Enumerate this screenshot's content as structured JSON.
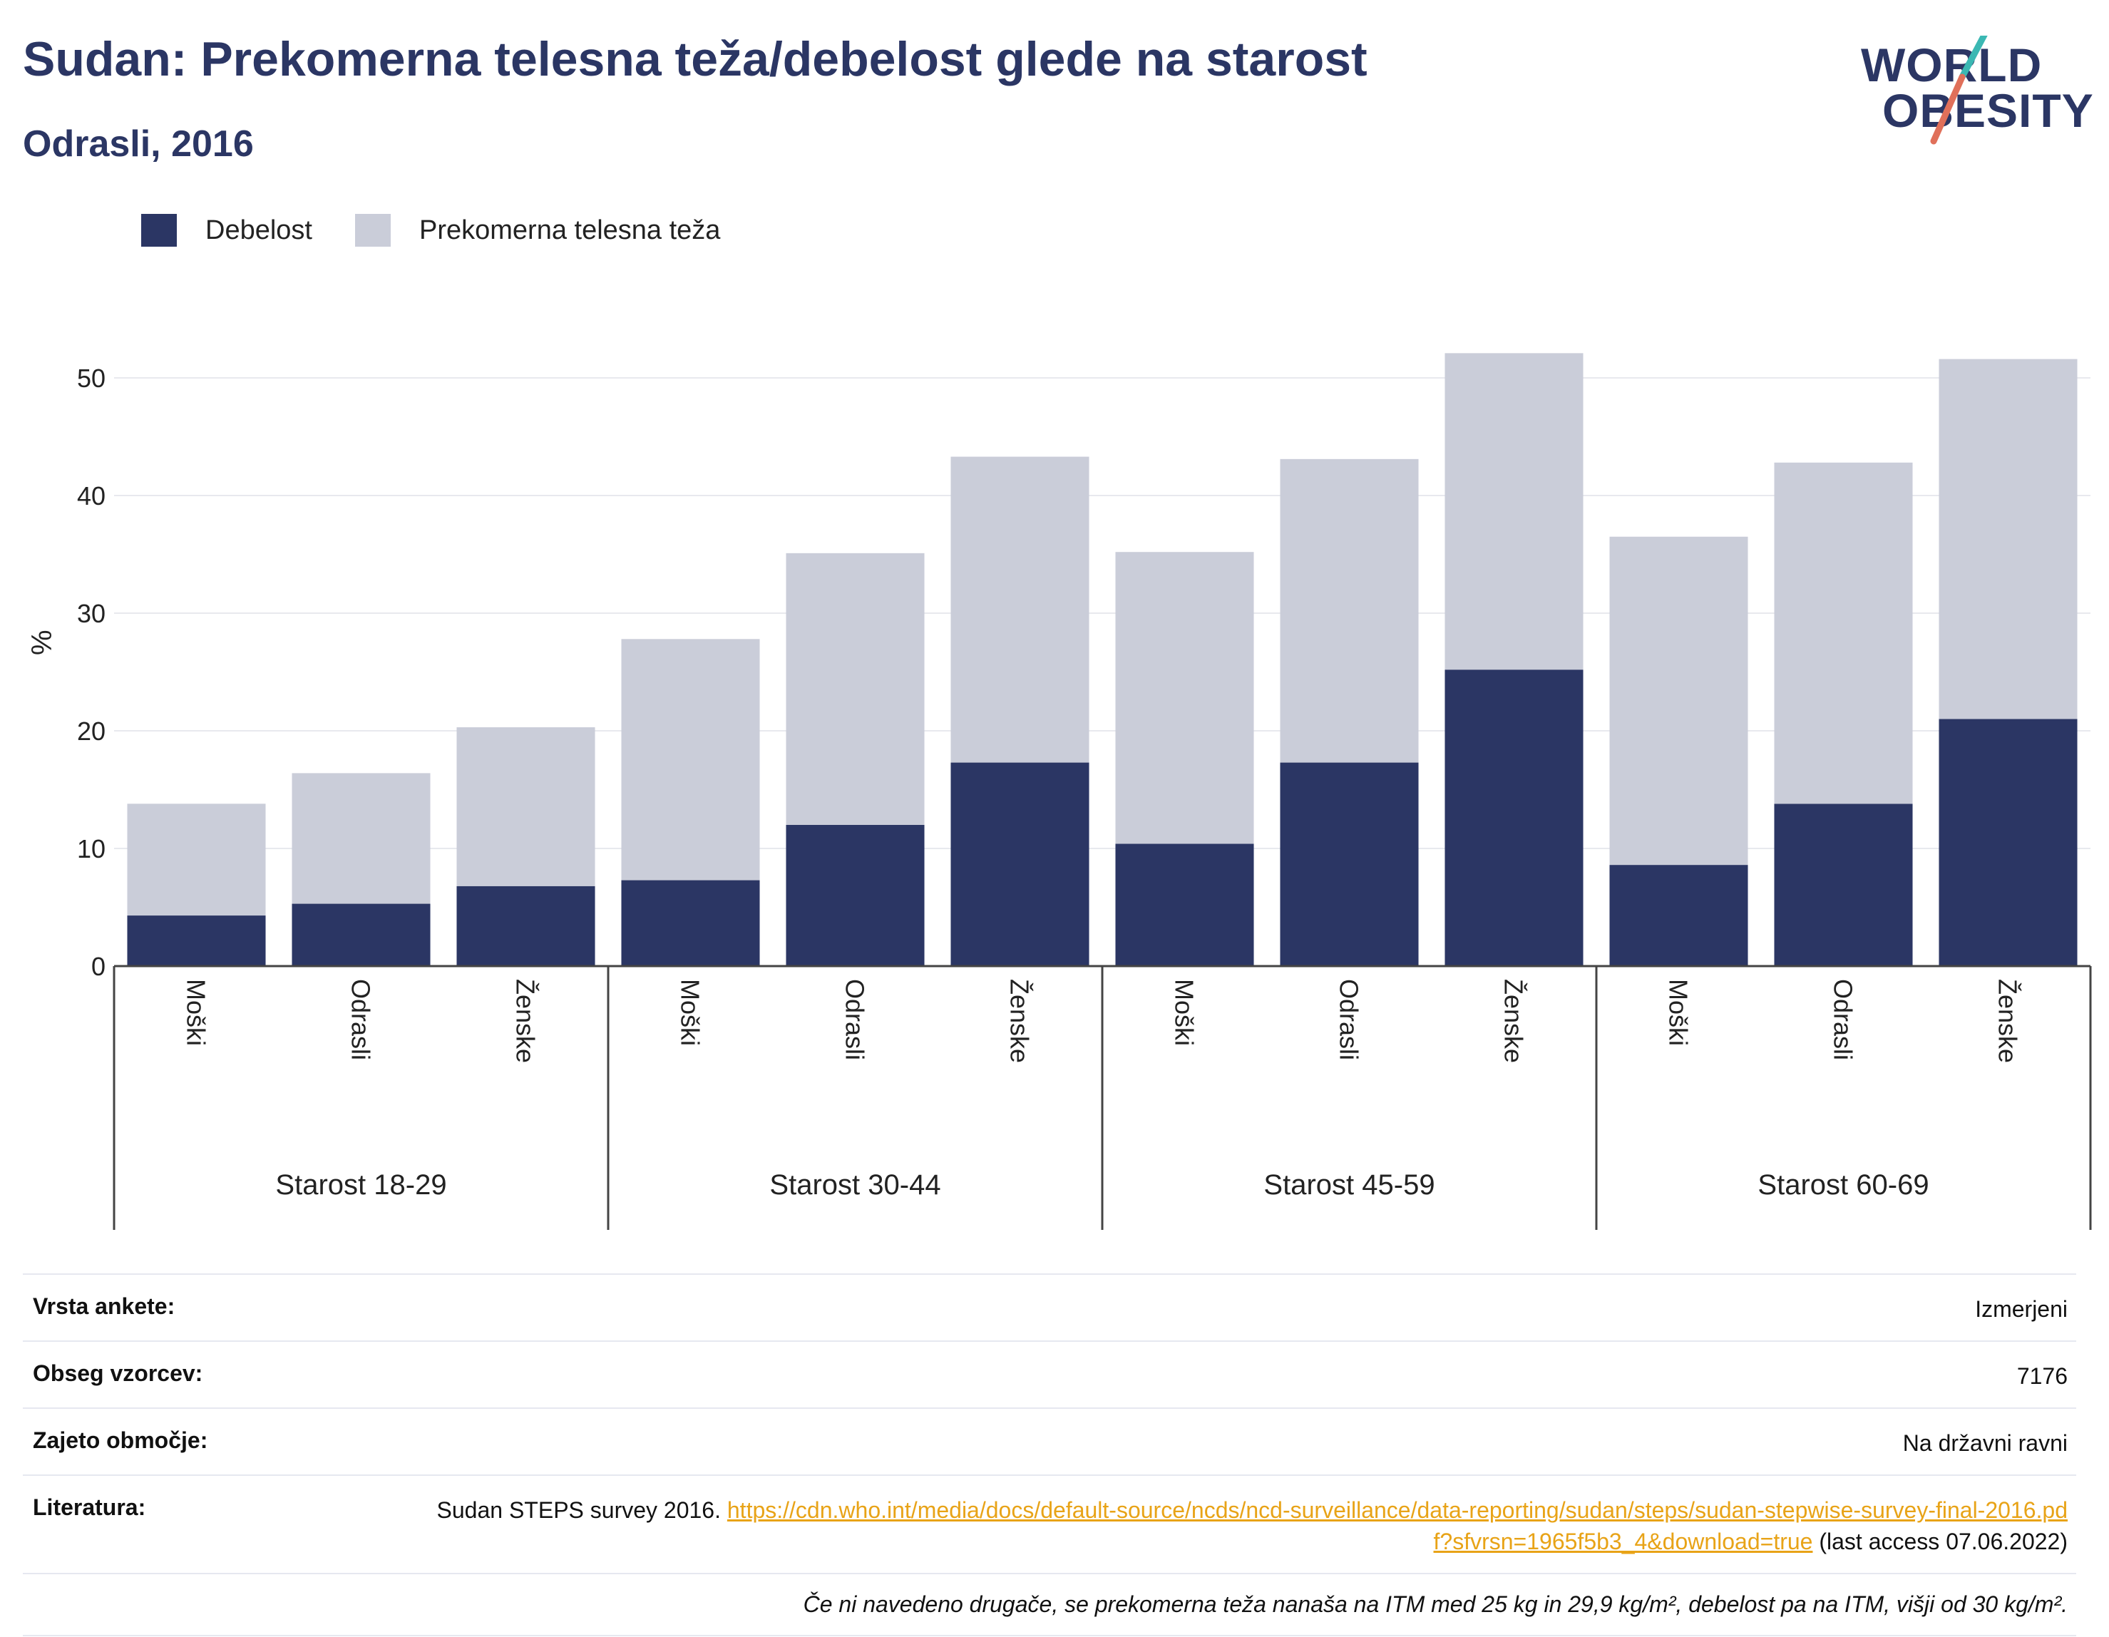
{
  "header": {
    "title": "Sudan: Prekomerna telesna teža/debelost glede na starost",
    "subtitle": "Odrasli, 2016"
  },
  "logo": {
    "line1": "WORLD",
    "line2": "OBESITY"
  },
  "colors": {
    "obesity": "#2b3664",
    "overweight": "#cacdd9",
    "title": "#2b3664",
    "link": "#e8a317",
    "logo_teal": "#3bb8b3",
    "logo_coral": "#e0705a"
  },
  "legend": [
    {
      "label": "Debelost",
      "color": "#2b3664"
    },
    {
      "label": "Prekomerna telesna teža",
      "color": "#cacdd9"
    }
  ],
  "chart_data": {
    "type": "bar",
    "stacked": true,
    "ylabel": "%",
    "ylim": [
      0,
      55
    ],
    "yticks": [
      0,
      10,
      20,
      30,
      40,
      50
    ],
    "grid": true,
    "legend_position": "top-left",
    "groups": [
      "Starost 18-29",
      "Starost 30-44",
      "Starost 45-59",
      "Starost 60-69"
    ],
    "categories": [
      "Moški",
      "Odrasli",
      "Ženske",
      "Moški",
      "Odrasli",
      "Ženske",
      "Moški",
      "Odrasli",
      "Ženske",
      "Moški",
      "Odrasli",
      "Ženske"
    ],
    "series": [
      {
        "name": "Debelost",
        "values": [
          4.3,
          5.3,
          6.8,
          7.3,
          12.0,
          17.3,
          10.4,
          17.3,
          25.2,
          8.6,
          13.8,
          21.0
        ]
      },
      {
        "name": "Prekomerna telesna teža",
        "values": [
          9.5,
          11.1,
          13.5,
          20.5,
          23.1,
          26.0,
          24.8,
          25.8,
          26.9,
          27.9,
          29.0,
          30.6
        ]
      }
    ]
  },
  "meta": {
    "survey_type_label": "Vrsta ankete:",
    "survey_type_value": "Izmerjeni",
    "sample_label": "Obseg vzorcev:",
    "sample_value": "7176",
    "area_label": "Zajeto območje:",
    "area_value": "Na državni ravni",
    "lit_label": "Literatura:",
    "lit_text": "Sudan STEPS survey 2016.",
    "lit_link": "https://cdn.who.int/media/docs/default-source/ncds/ncd-surveillance/data-reporting/sudan/steps/sudan-stepwise-survey-final-2016.pdf?sfvrsn=1965f5b3_4&download=true",
    "lit_access": "(last access 07.06.2022)",
    "note": "Če ni navedeno drugače, se prekomerna teža nanaša na ITM med 25 kg in 29,9 kg/m², debelost pa na ITM, višji od 30 kg/m²."
  }
}
